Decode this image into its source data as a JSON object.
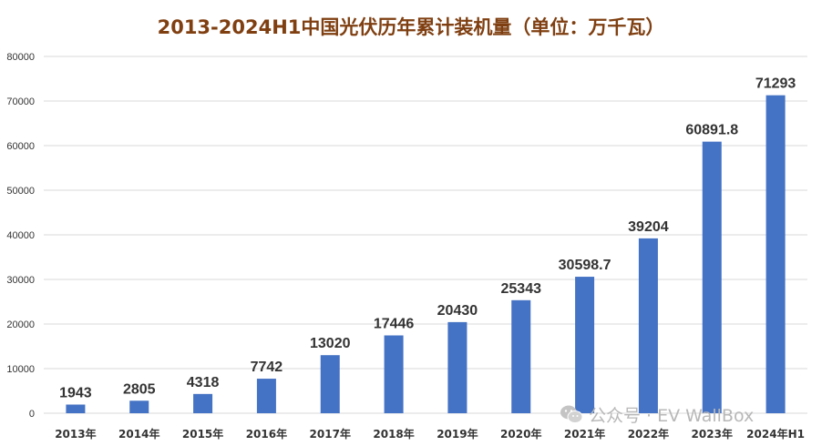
{
  "chart_data": {
    "type": "bar",
    "title": "2013-2024H1中国光伏历年累计装机量（单位：万千瓦）",
    "categories": [
      "2013年",
      "2014年",
      "2015年",
      "2016年",
      "2017年",
      "2018年",
      "2019年",
      "2020年",
      "2021年",
      "2022年",
      "2023年",
      "2024年H1"
    ],
    "values": [
      1943,
      2805,
      4318,
      7742,
      13020,
      17446,
      20430,
      25343,
      30598.7,
      39204,
      60891.8,
      71293
    ],
    "data_labels": [
      "1943",
      "2805",
      "4318",
      "7742",
      "13020",
      "17446",
      "20430",
      "25343",
      "30598.7",
      "39204",
      "60891.8",
      "71293"
    ],
    "ylim": [
      0,
      80000
    ],
    "yticks": [
      0,
      10000,
      20000,
      30000,
      40000,
      50000,
      60000,
      70000,
      80000
    ],
    "xlabel": "",
    "ylabel": "",
    "grid": true,
    "bar_color": "#4472c4",
    "grid_color": "#d9d9d9",
    "title_color": "#7f3f11"
  },
  "watermark": {
    "text": "公众号 · EV WallBox",
    "icon": "wechat-icon"
  }
}
